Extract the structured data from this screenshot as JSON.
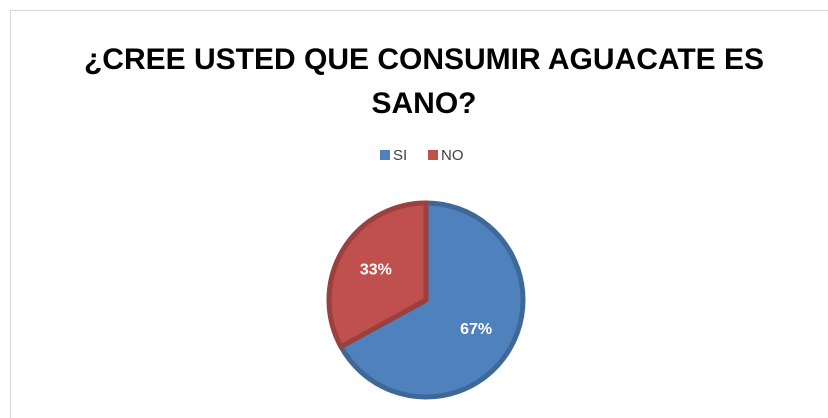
{
  "chart_data": {
    "type": "pie",
    "title": "¿CREE USTED QUE CONSUMIR AGUACATE ES SANO?",
    "categories": [
      "SI",
      "NO"
    ],
    "values": [
      67,
      33
    ],
    "value_labels": [
      "67%",
      "33%"
    ],
    "colors": [
      "#4f81bd",
      "#c0504d"
    ],
    "legend": "top"
  }
}
